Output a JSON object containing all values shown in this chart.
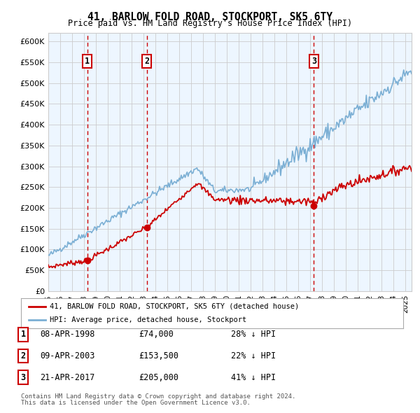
{
  "title": "41, BARLOW FOLD ROAD, STOCKPORT, SK5 6TY",
  "subtitle": "Price paid vs. HM Land Registry's House Price Index (HPI)",
  "ylabel_ticks": [
    "£0",
    "£50K",
    "£100K",
    "£150K",
    "£200K",
    "£250K",
    "£300K",
    "£350K",
    "£400K",
    "£450K",
    "£500K",
    "£550K",
    "£600K"
  ],
  "ytick_values": [
    0,
    50000,
    100000,
    150000,
    200000,
    250000,
    300000,
    350000,
    400000,
    450000,
    500000,
    550000,
    600000
  ],
  "ylim": [
    0,
    620000
  ],
  "xlim_start": 1995.0,
  "xlim_end": 2025.5,
  "sale_dates": [
    1998.27,
    2003.27,
    2017.3
  ],
  "sale_prices": [
    74000,
    153500,
    205000
  ],
  "sale_labels": [
    "1",
    "2",
    "3"
  ],
  "sale_info": [
    {
      "num": "1",
      "date": "08-APR-1998",
      "price": "£74,000",
      "hpi": "28% ↓ HPI"
    },
    {
      "num": "2",
      "date": "09-APR-2003",
      "price": "£153,500",
      "hpi": "22% ↓ HPI"
    },
    {
      "num": "3",
      "date": "21-APR-2017",
      "price": "£205,000",
      "hpi": "41% ↓ HPI"
    }
  ],
  "legend_line1": "41, BARLOW FOLD ROAD, STOCKPORT, SK5 6TY (detached house)",
  "legend_line2": "HPI: Average price, detached house, Stockport",
  "footer1": "Contains HM Land Registry data © Crown copyright and database right 2024.",
  "footer2": "This data is licensed under the Open Government Licence v3.0.",
  "hpi_color": "#7bafd4",
  "sold_color": "#cc0000",
  "vline_color": "#cc0000",
  "shade_color": "#ddeeff",
  "grid_color": "#cccccc",
  "background_color": "#ffffff"
}
